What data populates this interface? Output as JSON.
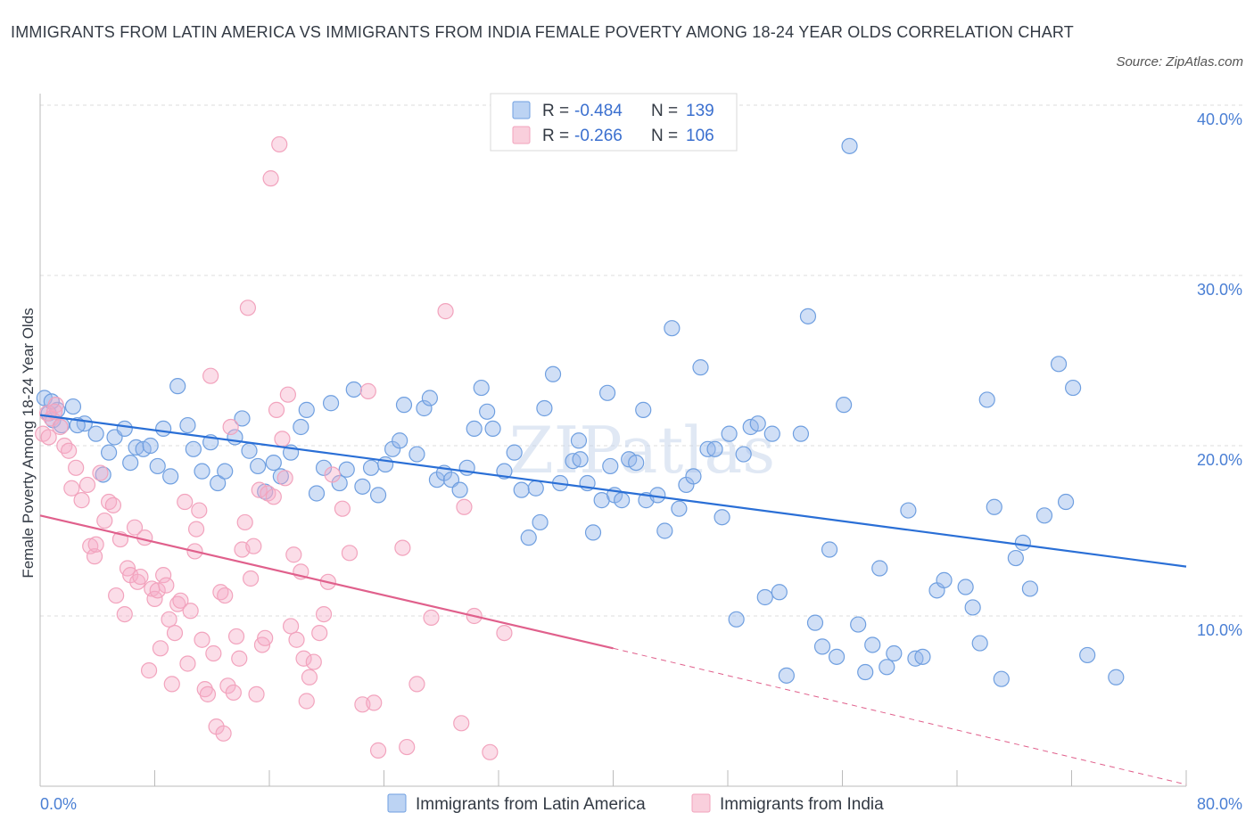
{
  "title": "IMMIGRANTS FROM LATIN AMERICA VS IMMIGRANTS FROM INDIA FEMALE POVERTY AMONG 18-24 YEAR OLDS CORRELATION CHART",
  "source": "Source: ZipAtlas.com",
  "watermark": "ZIPatlas",
  "colors": {
    "blue": "#6f9fe0",
    "blue_line": "#2a6fd6",
    "pink": "#f2a3bd",
    "pink_line": "#e0608c",
    "grid": "#dddddd",
    "tick_text": "#4a7fd4"
  },
  "legend": {
    "rows": [
      {
        "r_label": "R =",
        "r_value": "-0.484",
        "n_label": "N =",
        "n_value": "139"
      },
      {
        "r_label": "R =",
        "r_value": "-0.266",
        "n_label": "N =",
        "n_value": "106"
      }
    ]
  },
  "bottom_legend": [
    "Immigrants from Latin America",
    "Immigrants from India"
  ],
  "chart_data": {
    "type": "scatter",
    "xlabel": "",
    "ylabel": "Female Poverty Among 18-24 Year Olds",
    "xlim": [
      0,
      80
    ],
    "ylim": [
      0,
      40
    ],
    "x_tick_labels": [
      "0.0%",
      "80.0%"
    ],
    "y_ticks": [
      10,
      20,
      30,
      40
    ],
    "y_tick_labels": [
      "10.0%",
      "20.0%",
      "30.0%",
      "40.0%"
    ],
    "series": [
      {
        "name": "Immigrants from Latin America",
        "color": "blue",
        "trend": {
          "x": [
            0,
            80
          ],
          "y": [
            21.8,
            12.9
          ]
        },
        "points": [
          [
            0.3,
            22.8
          ],
          [
            0.6,
            21.9
          ],
          [
            0.9,
            21.5
          ],
          [
            1.2,
            22.1
          ],
          [
            1.5,
            21.2
          ],
          [
            2.3,
            22.3
          ],
          [
            3.1,
            21.3
          ],
          [
            3.9,
            20.7
          ],
          [
            4.4,
            18.3
          ],
          [
            4.8,
            19.6
          ],
          [
            5.2,
            20.5
          ],
          [
            5.9,
            21.0
          ],
          [
            6.3,
            19.0
          ],
          [
            6.7,
            19.9
          ],
          [
            7.2,
            19.8
          ],
          [
            7.7,
            20.0
          ],
          [
            8.2,
            18.8
          ],
          [
            8.6,
            21.0
          ],
          [
            9.1,
            18.2
          ],
          [
            9.6,
            23.5
          ],
          [
            10.3,
            21.2
          ],
          [
            10.7,
            19.8
          ],
          [
            11.3,
            18.5
          ],
          [
            11.9,
            20.2
          ],
          [
            12.4,
            17.8
          ],
          [
            12.9,
            18.5
          ],
          [
            13.6,
            20.5
          ],
          [
            14.1,
            21.6
          ],
          [
            14.6,
            19.7
          ],
          [
            15.2,
            18.8
          ],
          [
            15.7,
            17.3
          ],
          [
            16.3,
            19.0
          ],
          [
            16.8,
            18.2
          ],
          [
            17.5,
            19.6
          ],
          [
            18.2,
            21.1
          ],
          [
            18.6,
            22.1
          ],
          [
            19.3,
            17.2
          ],
          [
            19.8,
            18.7
          ],
          [
            20.3,
            22.5
          ],
          [
            20.9,
            17.8
          ],
          [
            21.4,
            18.6
          ],
          [
            21.9,
            23.3
          ],
          [
            22.5,
            17.6
          ],
          [
            23.1,
            18.7
          ],
          [
            23.6,
            17.1
          ],
          [
            24.1,
            18.9
          ],
          [
            24.6,
            19.8
          ],
          [
            25.1,
            20.3
          ],
          [
            25.4,
            22.4
          ],
          [
            26.3,
            19.5
          ],
          [
            26.8,
            22.2
          ],
          [
            27.2,
            22.8
          ],
          [
            27.7,
            18.0
          ],
          [
            28.2,
            18.4
          ],
          [
            28.7,
            18.0
          ],
          [
            29.3,
            17.4
          ],
          [
            29.8,
            18.7
          ],
          [
            30.3,
            21.0
          ],
          [
            30.8,
            23.4
          ],
          [
            31.2,
            22.0
          ],
          [
            31.6,
            21.0
          ],
          [
            32.4,
            18.5
          ],
          [
            33.1,
            19.6
          ],
          [
            33.6,
            17.4
          ],
          [
            34.1,
            14.6
          ],
          [
            34.6,
            17.5
          ],
          [
            34.9,
            15.5
          ],
          [
            35.2,
            22.2
          ],
          [
            35.8,
            24.2
          ],
          [
            36.3,
            17.8
          ],
          [
            37.2,
            19.1
          ],
          [
            37.6,
            20.3
          ],
          [
            37.7,
            19.2
          ],
          [
            38.2,
            17.8
          ],
          [
            38.6,
            14.9
          ],
          [
            39.2,
            16.8
          ],
          [
            39.6,
            23.1
          ],
          [
            40.1,
            17.1
          ],
          [
            40.6,
            16.8
          ],
          [
            41.1,
            19.2
          ],
          [
            41.6,
            19.0
          ],
          [
            42.1,
            22.1
          ],
          [
            42.3,
            16.8
          ],
          [
            43.1,
            17.1
          ],
          [
            43.6,
            15.0
          ],
          [
            44.1,
            26.9
          ],
          [
            44.6,
            16.3
          ],
          [
            45.1,
            17.7
          ],
          [
            45.6,
            18.2
          ],
          [
            46.1,
            24.6
          ],
          [
            46.6,
            19.8
          ],
          [
            47.1,
            19.8
          ],
          [
            47.6,
            15.8
          ],
          [
            48.1,
            20.7
          ],
          [
            48.6,
            9.8
          ],
          [
            49.1,
            19.5
          ],
          [
            49.6,
            21.1
          ],
          [
            50.1,
            21.3
          ],
          [
            50.6,
            11.1
          ],
          [
            51.1,
            20.7
          ],
          [
            51.6,
            11.4
          ],
          [
            52.1,
            6.5
          ],
          [
            53.1,
            20.7
          ],
          [
            53.6,
            27.6
          ],
          [
            54.1,
            9.6
          ],
          [
            54.6,
            8.2
          ],
          [
            55.1,
            13.9
          ],
          [
            55.6,
            7.6
          ],
          [
            56.1,
            22.4
          ],
          [
            57.1,
            9.5
          ],
          [
            57.6,
            6.7
          ],
          [
            58.1,
            8.3
          ],
          [
            58.6,
            12.8
          ],
          [
            59.1,
            7.0
          ],
          [
            59.6,
            7.8
          ],
          [
            60.6,
            16.2
          ],
          [
            61.1,
            7.5
          ],
          [
            61.6,
            7.6
          ],
          [
            62.6,
            11.5
          ],
          [
            63.1,
            12.1
          ],
          [
            64.6,
            11.7
          ],
          [
            65.1,
            10.5
          ],
          [
            65.6,
            8.4
          ],
          [
            66.1,
            22.7
          ],
          [
            66.6,
            16.4
          ],
          [
            67.1,
            6.3
          ],
          [
            68.1,
            13.4
          ],
          [
            68.6,
            14.3
          ],
          [
            69.1,
            11.6
          ],
          [
            70.1,
            15.9
          ],
          [
            71.1,
            24.8
          ],
          [
            71.6,
            16.7
          ],
          [
            72.1,
            23.4
          ],
          [
            73.1,
            7.7
          ],
          [
            75.1,
            6.4
          ],
          [
            56.5,
            37.6
          ],
          [
            0.8,
            22.6
          ],
          [
            2.6,
            21.2
          ],
          [
            39.8,
            18.8
          ]
        ]
      },
      {
        "name": "Immigrants from India",
        "color": "pink",
        "trend": {
          "x": [
            0,
            40
          ],
          "y": [
            15.9,
            8.1
          ]
        },
        "trend_dashed": {
          "x": [
            40,
            80
          ],
          "y": [
            8.1,
            0.1
          ]
        },
        "points": [
          [
            0.2,
            20.7
          ],
          [
            0.5,
            21.9
          ],
          [
            0.8,
            21.6
          ],
          [
            1.1,
            22.4
          ],
          [
            1.4,
            21.1
          ],
          [
            1.7,
            20.0
          ],
          [
            2.2,
            17.5
          ],
          [
            2.5,
            18.7
          ],
          [
            2.9,
            16.8
          ],
          [
            3.3,
            17.7
          ],
          [
            3.5,
            14.1
          ],
          [
            3.8,
            13.5
          ],
          [
            3.9,
            14.2
          ],
          [
            4.2,
            18.4
          ],
          [
            4.5,
            15.6
          ],
          [
            4.8,
            16.7
          ],
          [
            5.1,
            16.5
          ],
          [
            5.3,
            11.2
          ],
          [
            5.6,
            14.5
          ],
          [
            5.9,
            10.1
          ],
          [
            6.1,
            12.8
          ],
          [
            6.3,
            12.4
          ],
          [
            6.6,
            15.2
          ],
          [
            6.8,
            12.0
          ],
          [
            7.0,
            12.3
          ],
          [
            7.3,
            14.6
          ],
          [
            7.6,
            6.8
          ],
          [
            7.8,
            11.6
          ],
          [
            8.0,
            11.0
          ],
          [
            8.2,
            11.5
          ],
          [
            8.4,
            8.1
          ],
          [
            8.6,
            12.4
          ],
          [
            8.8,
            11.8
          ],
          [
            9.0,
            9.8
          ],
          [
            9.2,
            6.0
          ],
          [
            9.4,
            9.0
          ],
          [
            9.6,
            10.7
          ],
          [
            9.8,
            10.9
          ],
          [
            10.1,
            16.7
          ],
          [
            10.3,
            7.2
          ],
          [
            10.5,
            10.3
          ],
          [
            10.8,
            13.8
          ],
          [
            10.9,
            15.1
          ],
          [
            11.1,
            16.2
          ],
          [
            11.3,
            8.6
          ],
          [
            11.5,
            5.7
          ],
          [
            11.7,
            5.4
          ],
          [
            11.9,
            24.1
          ],
          [
            12.1,
            7.8
          ],
          [
            12.3,
            3.5
          ],
          [
            12.6,
            11.4
          ],
          [
            12.8,
            3.1
          ],
          [
            13.1,
            5.9
          ],
          [
            13.3,
            21.1
          ],
          [
            13.5,
            5.5
          ],
          [
            13.7,
            8.8
          ],
          [
            13.9,
            7.5
          ],
          [
            14.1,
            13.9
          ],
          [
            14.3,
            15.5
          ],
          [
            14.5,
            28.1
          ],
          [
            14.7,
            12.2
          ],
          [
            14.9,
            14.1
          ],
          [
            15.1,
            5.4
          ],
          [
            15.3,
            17.4
          ],
          [
            15.5,
            8.3
          ],
          [
            15.7,
            8.7
          ],
          [
            15.9,
            17.2
          ],
          [
            16.1,
            35.7
          ],
          [
            16.3,
            17.0
          ],
          [
            16.5,
            22.1
          ],
          [
            16.7,
            37.7
          ],
          [
            16.9,
            20.4
          ],
          [
            17.1,
            18.1
          ],
          [
            17.3,
            23.0
          ],
          [
            17.5,
            9.4
          ],
          [
            17.7,
            13.6
          ],
          [
            17.9,
            8.6
          ],
          [
            18.2,
            12.6
          ],
          [
            18.4,
            7.5
          ],
          [
            18.6,
            5.0
          ],
          [
            18.8,
            6.4
          ],
          [
            19.1,
            7.3
          ],
          [
            19.5,
            9.0
          ],
          [
            19.8,
            10.1
          ],
          [
            20.1,
            12.0
          ],
          [
            20.4,
            18.3
          ],
          [
            21.1,
            16.3
          ],
          [
            21.6,
            13.7
          ],
          [
            22.5,
            4.8
          ],
          [
            22.9,
            23.2
          ],
          [
            23.3,
            4.9
          ],
          [
            23.6,
            2.1
          ],
          [
            25.3,
            14.0
          ],
          [
            25.6,
            2.3
          ],
          [
            26.3,
            6.0
          ],
          [
            27.3,
            9.9
          ],
          [
            28.3,
            27.9
          ],
          [
            29.4,
            3.7
          ],
          [
            29.6,
            16.4
          ],
          [
            30.3,
            10.0
          ],
          [
            31.4,
            2.0
          ],
          [
            32.4,
            9.0
          ],
          [
            0.6,
            20.5
          ],
          [
            1.0,
            22.0
          ],
          [
            2.0,
            19.7
          ],
          [
            12.9,
            11.2
          ]
        ]
      }
    ]
  }
}
